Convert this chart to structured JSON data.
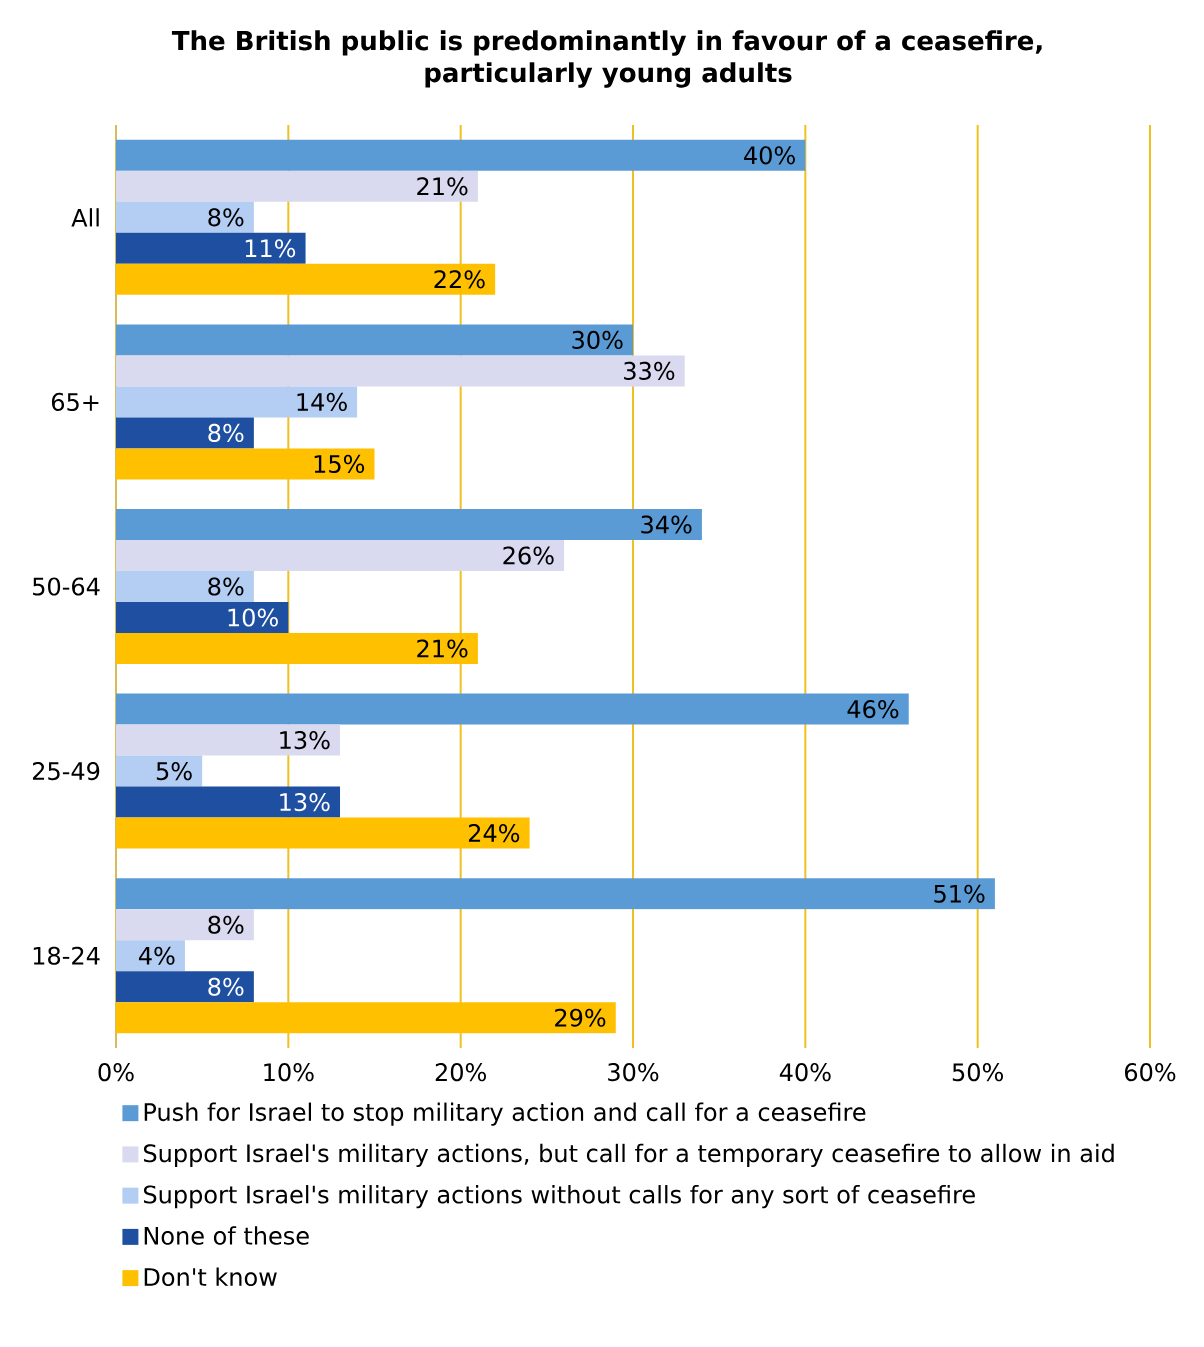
{
  "chart_data": {
    "type": "bar",
    "orientation": "horizontal",
    "title": "The British public is predominantly in favour of a ceasefire,\nparticularly young adults",
    "categories": [
      "All",
      "65+",
      "50-64",
      "25-49",
      "18-24"
    ],
    "series": [
      {
        "name": "Push for Israel to stop military action and call for a ceasefire",
        "color": "#5b9bd5",
        "values": [
          40,
          30,
          34,
          46,
          51
        ],
        "value_labels": [
          "40%",
          "30%",
          "34%",
          "46%",
          "51%"
        ]
      },
      {
        "name": "Support Israel's military actions, but call for a temporary ceasefire to allow in aid",
        "color": "#d9d9ef",
        "values": [
          21,
          33,
          26,
          13,
          8
        ],
        "value_labels": [
          "21%",
          "33%",
          "26%",
          "13%",
          "8%"
        ]
      },
      {
        "name": "Support Israel's military actions without calls for any sort of ceasefire",
        "color": "#b4cdf2",
        "values": [
          8,
          14,
          8,
          5,
          4
        ],
        "value_labels": [
          "8%",
          "14%",
          "8%",
          "5%",
          "4%"
        ]
      },
      {
        "name": "None of these",
        "color": "#1f4fa0",
        "values": [
          11,
          8,
          10,
          13,
          8
        ],
        "value_labels": [
          "11%",
          "8%",
          "10%",
          "13%",
          "8%"
        ]
      },
      {
        "name": "Don't know",
        "color": "#ffc000",
        "values": [
          22,
          15,
          21,
          24,
          29
        ],
        "value_labels": [
          "22%",
          "15%",
          "21%",
          "24%",
          "29%"
        ]
      }
    ],
    "xlim": [
      0,
      60
    ],
    "xticks": [
      {
        "value": 0,
        "label": "0%"
      },
      {
        "value": 10,
        "label": "10%"
      },
      {
        "value": 20,
        "label": "20%"
      },
      {
        "value": 30,
        "label": "30%"
      },
      {
        "value": 40,
        "label": "40%"
      },
      {
        "value": 50,
        "label": "50%"
      },
      {
        "value": 60,
        "label": "60%"
      }
    ],
    "grid": "x",
    "legend": "bottom"
  }
}
